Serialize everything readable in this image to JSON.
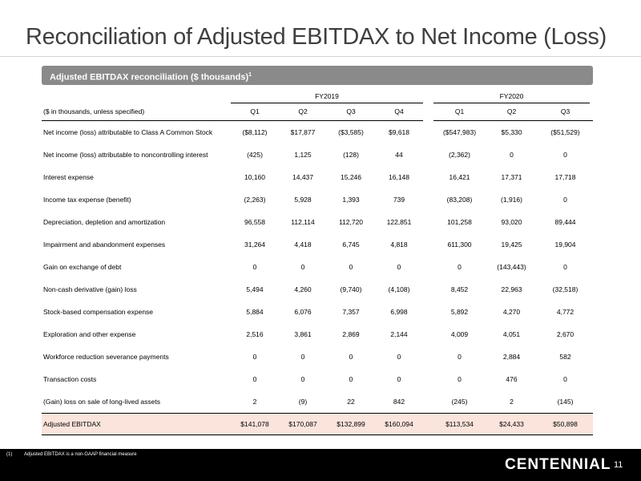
{
  "title": "Reconciliation of Adjusted EBITDAX to Net Income (Loss)",
  "banner": {
    "text": "Adjusted EBITDAX reconciliation ($ thousands)",
    "superscript": "1"
  },
  "table": {
    "fy2019_label": "FY2019",
    "fy2020_label": "FY2020",
    "units_label": "($ in thousands, unless specified)",
    "columns_2019": [
      "Q1",
      "Q2",
      "Q3",
      "Q4"
    ],
    "columns_2020": [
      "Q1",
      "Q2",
      "Q3"
    ],
    "rows": [
      {
        "label": "Net income (loss) attributable to Class A Common Stock",
        "fy2019": [
          "($8,112)",
          "$17,877",
          "($3,585)",
          "$9,618"
        ],
        "fy2020": [
          "($547,983)",
          "$5,330",
          "($51,529)"
        ]
      },
      {
        "label": "Net income (loss) attributable to noncontrolling interest",
        "fy2019": [
          "(425)",
          "1,125",
          "(128)",
          "44"
        ],
        "fy2020": [
          "(2,362)",
          "0",
          "0"
        ]
      },
      {
        "label": "Interest expense",
        "fy2019": [
          "10,160",
          "14,437",
          "15,246",
          "16,148"
        ],
        "fy2020": [
          "16,421",
          "17,371",
          "17,718"
        ]
      },
      {
        "label": "Income tax expense (benefit)",
        "fy2019": [
          "(2,263)",
          "5,928",
          "1,393",
          "739"
        ],
        "fy2020": [
          "(83,208)",
          "(1,916)",
          "0"
        ]
      },
      {
        "label": "Depreciation, depletion and amortization",
        "fy2019": [
          "96,558",
          "112,114",
          "112,720",
          "122,851"
        ],
        "fy2020": [
          "101,258",
          "93,020",
          "89,444"
        ]
      },
      {
        "label": "Impairment and abandonment expenses",
        "fy2019": [
          "31,264",
          "4,418",
          "6,745",
          "4,818"
        ],
        "fy2020": [
          "611,300",
          "19,425",
          "19,904"
        ]
      },
      {
        "label": "Gain on exchange of debt",
        "fy2019": [
          "0",
          "0",
          "0",
          "0"
        ],
        "fy2020": [
          "0",
          "(143,443)",
          "0"
        ]
      },
      {
        "label": "Non-cash derivative (gain) loss",
        "fy2019": [
          "5,494",
          "4,260",
          "(9,740)",
          "(4,108)"
        ],
        "fy2020": [
          "8,452",
          "22,963",
          "(32,518)"
        ]
      },
      {
        "label": "Stock-based compensation expense",
        "fy2019": [
          "5,884",
          "6,076",
          "7,357",
          "6,998"
        ],
        "fy2020": [
          "5,892",
          "4,270",
          "4,772"
        ]
      },
      {
        "label": "Exploration and other expense",
        "fy2019": [
          "2,516",
          "3,861",
          "2,869",
          "2,144"
        ],
        "fy2020": [
          "4,009",
          "4,051",
          "2,670"
        ]
      },
      {
        "label": "Workforce reduction severance payments",
        "fy2019": [
          "0",
          "0",
          "0",
          "0"
        ],
        "fy2020": [
          "0",
          "2,884",
          "582"
        ]
      },
      {
        "label": "Transaction costs",
        "fy2019": [
          "0",
          "0",
          "0",
          "0"
        ],
        "fy2020": [
          "0",
          "476",
          "0"
        ]
      },
      {
        "label": "(Gain) loss on sale of long-lived assets",
        "fy2019": [
          "2",
          "(9)",
          "22",
          "842"
        ],
        "fy2020": [
          "(245)",
          "2",
          "(145)"
        ]
      }
    ],
    "total": {
      "label": "Adjusted EBITDAX",
      "fy2019": [
        "$141,078",
        "$170,087",
        "$132,899",
        "$160,094"
      ],
      "fy2020": [
        "$113,534",
        "$24,433",
        "$50,898"
      ]
    }
  },
  "footer": {
    "footnote_number": "(1)",
    "footnote_text": "Adjusted EBITDAX is a non-GAAP financial measure",
    "logo": "CENTENNIAL",
    "page_number": "11"
  }
}
